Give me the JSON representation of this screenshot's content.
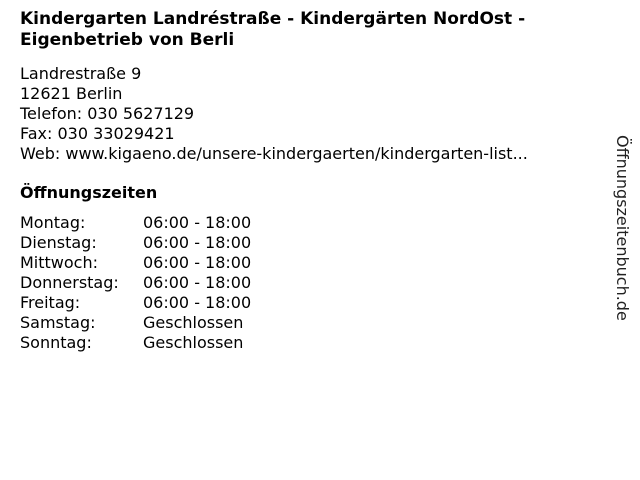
{
  "title": "Kindergarten Landréstraße - Kindergärten NordOst - Eigenbetrieb von Berli",
  "address": {
    "street": "Landrestraße 9",
    "city": "12621 Berlin",
    "phone": "Telefon: 030 5627129",
    "fax": "Fax: 030 33029421",
    "web": "Web: www.kigaeno.de/unsere-kindergaerten/kindergarten-list..."
  },
  "hours_heading": "Öffnungszeiten",
  "hours": [
    {
      "day": "Montag:",
      "time": "06:00 - 18:00"
    },
    {
      "day": "Dienstag:",
      "time": "06:00 - 18:00"
    },
    {
      "day": "Mittwoch:",
      "time": "06:00 - 18:00"
    },
    {
      "day": "Donnerstag:",
      "time": "06:00 - 18:00"
    },
    {
      "day": "Freitag:",
      "time": "06:00 - 18:00"
    },
    {
      "day": "Samstag:",
      "time": "Geschlossen"
    },
    {
      "day": "Sonntag:",
      "time": "Geschlossen"
    }
  ],
  "watermark": "Öffnungszeitenbuch.de"
}
